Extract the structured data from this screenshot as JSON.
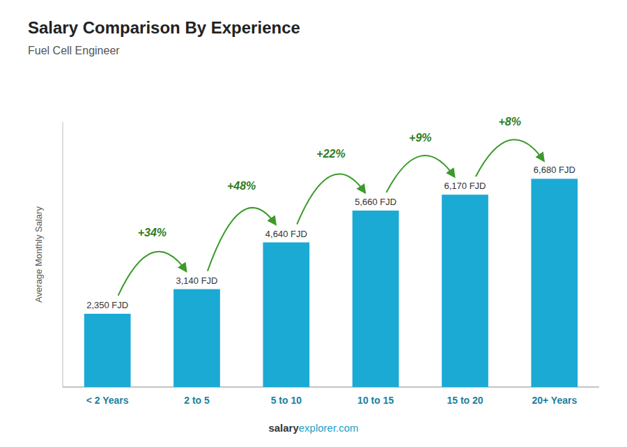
{
  "chart_data": {
    "type": "bar",
    "title": "Salary Comparison By Experience",
    "subtitle": "Fuel Cell Engineer",
    "ylabel": "Average Monthly Salary",
    "categories": [
      "< 2 Years",
      "2 to 5",
      "5 to 10",
      "10 to 15",
      "15 to 20",
      "20+ Years"
    ],
    "values": [
      2350,
      3140,
      4640,
      5660,
      6170,
      6680
    ],
    "value_labels": [
      "2,350 FJD",
      "3,140 FJD",
      "4,640 FJD",
      "5,660 FJD",
      "6,170 FJD",
      "6,680 FJD"
    ],
    "annotations": [
      "+34%",
      "+48%",
      "+22%",
      "+9%",
      "+8%"
    ],
    "footer": [
      "salary",
      "explorer.com"
    ],
    "color": "#1baad4",
    "ylim": [
      0,
      8500
    ],
    "data_labels": true,
    "tick_labels": "x",
    "grid": false
  }
}
